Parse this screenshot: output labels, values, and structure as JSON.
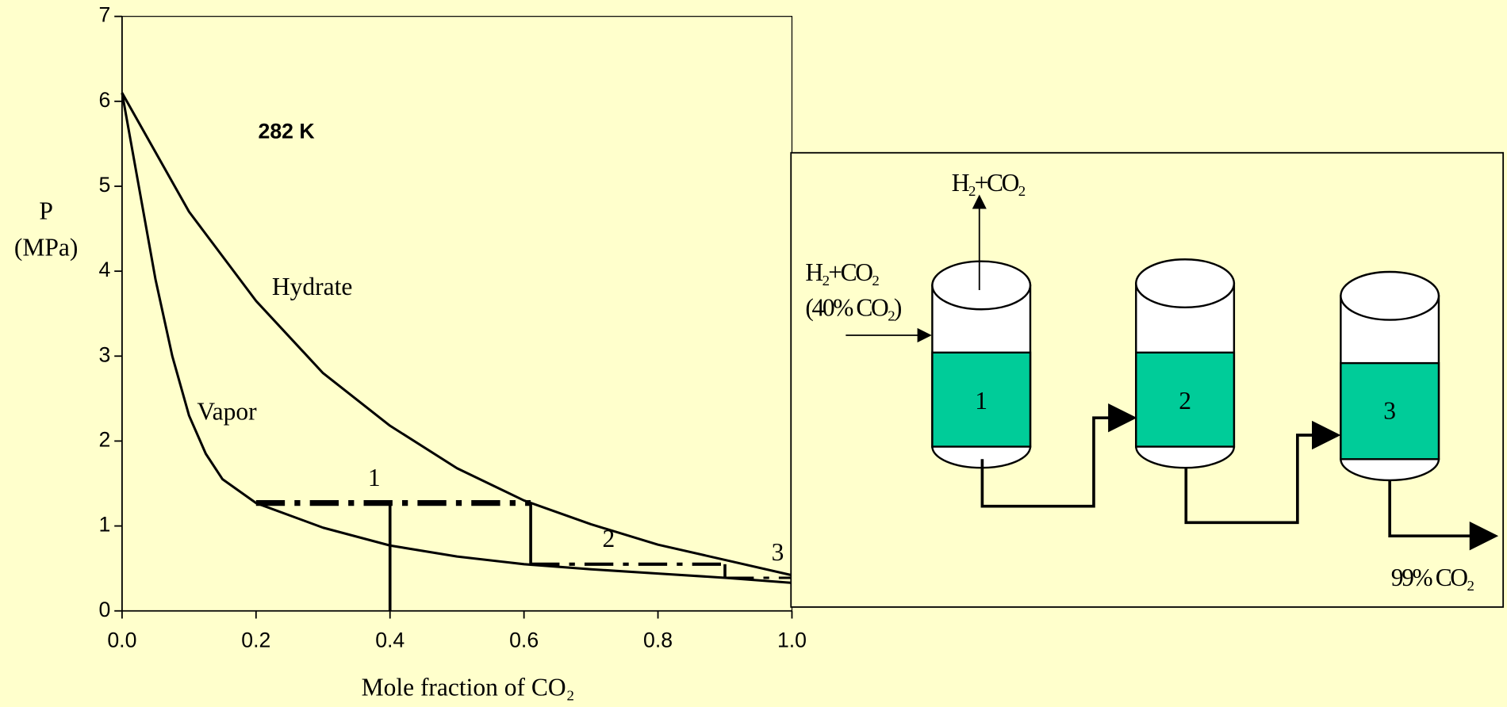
{
  "chart_data": {
    "type": "line",
    "annotation": "282 K",
    "xlabel": "Mole fraction of CO₂",
    "ylabel": [
      "P",
      "(MPa)"
    ],
    "xlim": [
      0,
      1
    ],
    "ylim": [
      0,
      7
    ],
    "xticks": [
      {
        "value": 0,
        "label": "0.0"
      },
      0.2,
      0.4,
      0.6,
      0.8,
      {
        "value": 1,
        "label": "1.0"
      }
    ],
    "yticks": [
      0,
      1,
      2,
      3,
      4,
      5,
      6,
      7
    ],
    "series": [
      {
        "name": "Hydrate",
        "color": "#000000",
        "x": [
          0,
          0.1,
          0.2,
          0.3,
          0.4,
          0.5,
          0.6,
          0.7,
          0.8,
          0.9,
          1.0
        ],
        "values": [
          6.1,
          4.7,
          3.65,
          2.8,
          2.18,
          1.68,
          1.3,
          1.02,
          0.78,
          0.6,
          0.42
        ]
      },
      {
        "name": "Vapor",
        "color": "#000000",
        "x": [
          0,
          0.025,
          0.05,
          0.075,
          0.1,
          0.125,
          0.15,
          0.2,
          0.3,
          0.4,
          0.5,
          0.6,
          0.7,
          0.8,
          0.9,
          1.0
        ],
        "values": [
          6.1,
          5.0,
          3.9,
          3.0,
          2.3,
          1.85,
          1.55,
          1.27,
          0.98,
          0.77,
          0.64,
          0.55,
          0.49,
          0.44,
          0.39,
          0.33
        ]
      }
    ],
    "stages": [
      {
        "label": "1",
        "x": [
          0.2,
          0.61
        ],
        "y": [
          1.27,
          0.55
        ]
      },
      {
        "label": "2",
        "x": [
          0.61,
          0.9
        ],
        "y": [
          0.55,
          0.39
        ]
      },
      {
        "label": "3",
        "x": [
          0.9,
          1.0
        ],
        "y": [
          0.39,
          0.39
        ]
      }
    ],
    "feed_line": {
      "x": 0.4,
      "y": [
        0,
        1.27
      ]
    }
  },
  "diagram": {
    "top_output": "H₂+CO₂",
    "feed": [
      "H₂+CO₂",
      "(40% CO₂)"
    ],
    "tanks": [
      "1",
      "2",
      "3"
    ],
    "product": "99% CO₂"
  }
}
